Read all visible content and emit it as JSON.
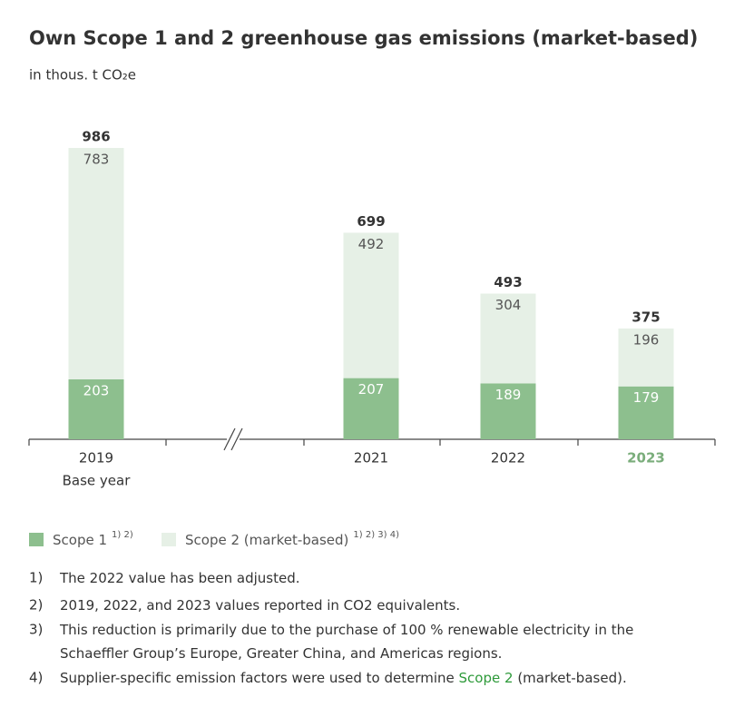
{
  "chart_data": {
    "type": "stacked_bar",
    "title": "Own Scope 1 and 2 greenhouse gas emissions (market-based)",
    "subtitle": "in thous. t CO₂e",
    "categories": [
      "2019",
      "2021",
      "2022",
      "2023"
    ],
    "category_notes": [
      "Base year",
      null,
      null,
      null
    ],
    "highlighted_category": 3,
    "highlight_color": "#7aad7b",
    "axis_break_after": 0,
    "series": [
      {
        "name": "Scope 1",
        "footnote_refs": "1) 2)",
        "color": "#8dbf8e",
        "label_color": "#ffffff",
        "values": [
          203,
          207,
          189,
          179
        ]
      },
      {
        "name": "Scope 2 (market-based)",
        "footnote_refs": "1) 2) 3) 4)",
        "color": "#e6f0e6",
        "label_color": "#555555",
        "values": [
          783,
          492,
          304,
          196
        ]
      }
    ],
    "totals": [
      986,
      699,
      493,
      375
    ]
  },
  "footnotes": [
    {
      "marker": "1)",
      "parts": [
        {
          "text": "The 2022 value has been adjusted."
        }
      ]
    },
    {
      "marker": "2)",
      "parts": [
        {
          "text": "2019, 2022, and 2023 values reported in CO2 equivalents."
        }
      ]
    },
    {
      "marker": "3)",
      "parts": [
        {
          "text": "This reduction is primarily due to the purchase of 100 % renewable electricity in the"
        }
      ]
    },
    {
      "marker": null,
      "parts": [
        {
          "text": "Schaeffler Group’s Europe, Greater China, and Americas regions."
        }
      ]
    },
    {
      "marker": "4)",
      "parts": [
        {
          "text": "Supplier-specific emission factors were used to determine "
        },
        {
          "text": "Scope 2",
          "link": true
        },
        {
          "text": " (market-based)."
        }
      ]
    }
  ]
}
